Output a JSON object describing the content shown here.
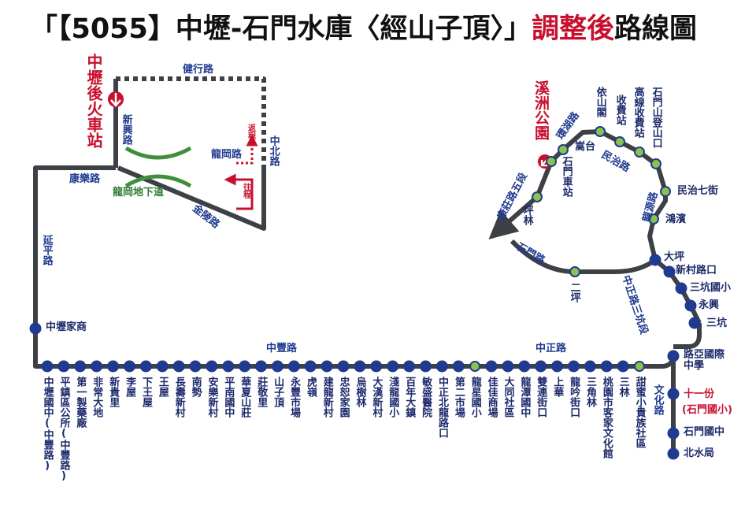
{
  "title": {
    "main": "「【5055】中壢-石門水庫〈經山子頂〉」",
    "highlight": "調整後",
    "end": "路線圖"
  },
  "terminal": "中壢後火車站",
  "roads": [
    "健行路",
    "新興路",
    "中北路",
    "龍岡路",
    "康樂路",
    "龍岡地下道",
    "金陵路",
    "延平路",
    "中豐路",
    "中正路",
    "文化路",
    "環湖路",
    "民治路",
    "康莊路五段",
    "石門路",
    "龍源路",
    "中正路三坑段"
  ],
  "directions": [
    "返程",
    "往程"
  ],
  "west_stop": "中壢家商",
  "bottom_stops": [
    "中壢國中(中豐路)",
    "平鎮區公所(中豐路)",
    "第一製藥廠",
    "非常大地",
    "新貴里",
    "李屋",
    "下王屋",
    "王屋",
    "長壽新村",
    "南勢",
    "安樂新村",
    "平南國中",
    "華夏山莊",
    "莊敬里",
    "山子頂",
    "永豐市場",
    "虎嶺",
    "建龍新村",
    "忠恕家園",
    "烏樹林",
    "大漢新村",
    "淺龍國小",
    "百年大鎮",
    "敏盛醫院",
    "中正北龍路口",
    "第二市場",
    "龍星國小",
    "佳佳商場",
    "大同社區",
    "龍潭國中",
    "雙連街口",
    "上華",
    "龍吟街口",
    "三角林",
    "桃園市客家文化館",
    "三林",
    "甜蜜小貴族社區"
  ],
  "east_stops": [
    "路亞國際中學",
    "十一份",
    "(石門國小)",
    "石門國中",
    "北水局"
  ],
  "loop_stops": [
    "三坑",
    "永興",
    "三坑國小",
    "新村路口",
    "大坪",
    "鴻濱",
    "民治七街",
    "石門山登山口",
    "高線收費站",
    "收費站",
    "依山閣",
    "嵩台",
    "石門車站",
    "坪林",
    "二坪"
  ],
  "loop_terminal": "溪洲公園"
}
